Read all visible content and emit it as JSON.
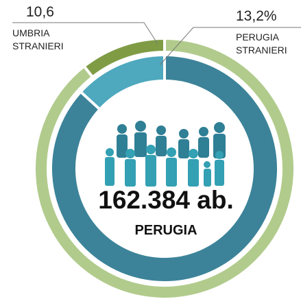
{
  "chart_data": {
    "type": "donut",
    "center_value": "162.384 ab.",
    "center_label": "PERUGIA",
    "rings": [
      {
        "categories": [
          "UMBRIA STRANIERI",
          null
        ],
        "values": [
          10.6,
          89.4
        ],
        "value_labels": [
          "10,6",
          null
        ],
        "colors": [
          "#7f9c45",
          "#b1cb8c"
        ]
      },
      {
        "categories": [
          "PERUGIA STRANIERI",
          null
        ],
        "values": [
          13.2,
          86.8
        ],
        "value_labels": [
          "13,2%",
          null
        ],
        "colors": [
          "#4ea8be",
          "#3c8399"
        ]
      }
    ]
  }
}
